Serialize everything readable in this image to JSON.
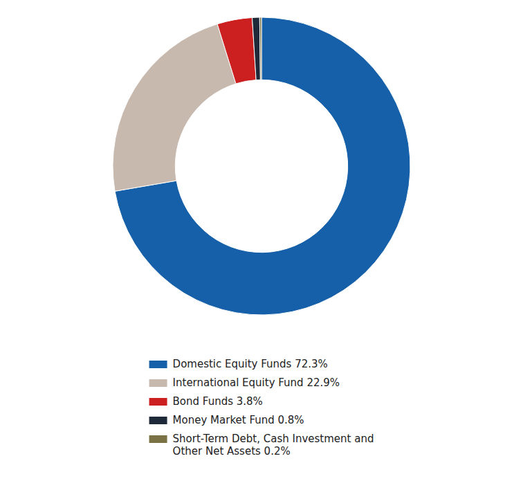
{
  "chart_data": {
    "type": "donut",
    "labels": [
      "Domestic Equity Funds 72.3%",
      "International Equity Fund 22.9%",
      "Bond Funds 3.8%",
      "Money Market Fund 0.8%",
      "Short-Term Debt, Cash Investment and\nOther Net Assets 0.2%"
    ],
    "values": [
      72.3,
      22.9,
      3.8,
      0.8,
      0.2
    ],
    "colors": [
      "#1560A8",
      "#C8B9AF",
      "#CC1F1F",
      "#1E2A3A",
      "#7A7245"
    ],
    "legend": "bottom"
  }
}
